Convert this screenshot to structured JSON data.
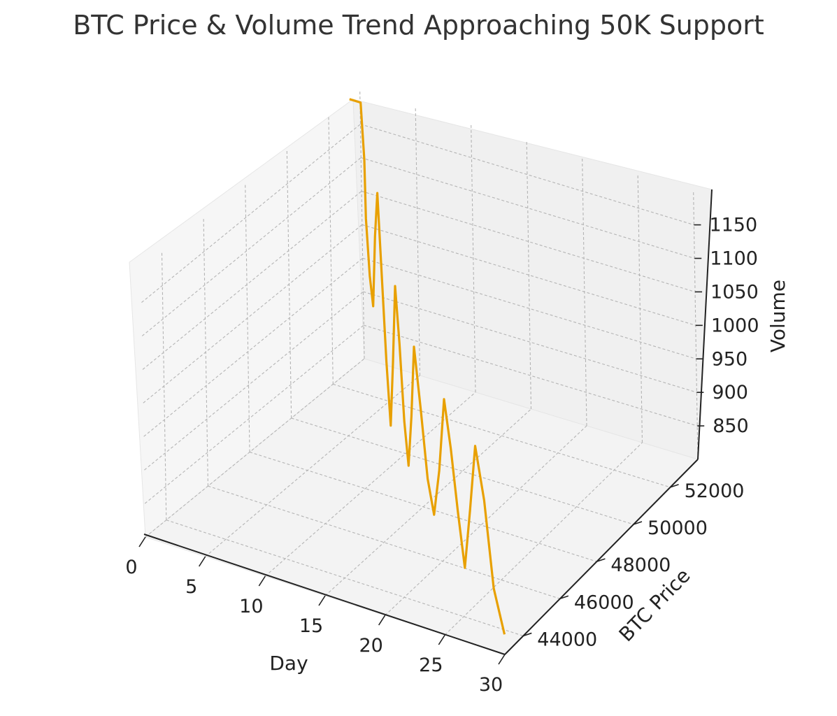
{
  "chart_data": {
    "type": "line",
    "projection": "3d",
    "title": "BTC Price & Volume Trend Approaching 50K Support",
    "xlabel": "Day",
    "ylabel": "BTC Price",
    "zlabel": "Volume",
    "xlim": [
      0,
      30
    ],
    "ylim": [
      43000,
      53500
    ],
    "zlim": [
      800,
      1200
    ],
    "xticks": [
      "0",
      "5",
      "10",
      "15",
      "20",
      "25",
      "30"
    ],
    "yticks": [
      "44000",
      "46000",
      "48000",
      "50000",
      "52000"
    ],
    "zticks": [
      "850",
      "900",
      "950",
      "1000",
      "1050",
      "1100",
      "1150"
    ],
    "grid": true,
    "line_color": "#e8a000",
    "series": [
      {
        "x": [
          0,
          1,
          2,
          3,
          4,
          5,
          6,
          7,
          8,
          9,
          10,
          11,
          12,
          13,
          14,
          15,
          16,
          17,
          18,
          19,
          20,
          21,
          22,
          23,
          24,
          25,
          26,
          27,
          28,
          29,
          30
        ],
        "y": [
          53000,
          53000,
          52600,
          52100,
          51700,
          51300,
          50900,
          50500,
          50100,
          49700,
          49300,
          48900,
          48500,
          48100,
          47700,
          47300,
          46900,
          46500,
          46200,
          45900,
          45600,
          45300,
          45000,
          44700,
          44400,
          44100,
          43800,
          43500,
          43300,
          43100,
          43000
        ],
        "z": [
          1200,
          1200,
          1130,
          1060,
          990,
          960,
          1080,
          1160,
          1050,
          940,
          860,
          970,
          1100,
          1030,
          930,
          880,
          970,
          1090,
          1010,
          920,
          880,
          960,
          1080,
          1020,
          940,
          870,
          970,
          1080,
          1010,
          890,
          830
        ]
      }
    ]
  }
}
